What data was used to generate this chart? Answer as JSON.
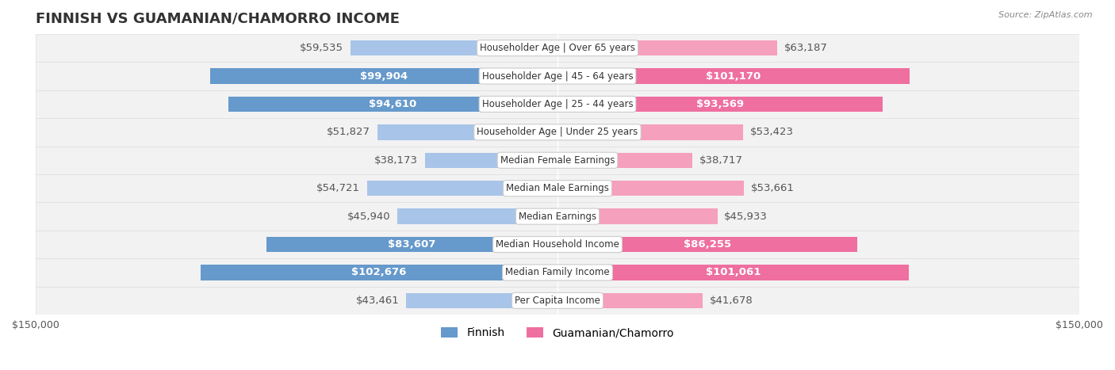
{
  "title": "FINNISH VS GUAMANIAN/CHAMORRO INCOME",
  "source": "Source: ZipAtlas.com",
  "categories": [
    "Per Capita Income",
    "Median Family Income",
    "Median Household Income",
    "Median Earnings",
    "Median Male Earnings",
    "Median Female Earnings",
    "Householder Age | Under 25 years",
    "Householder Age | 25 - 44 years",
    "Householder Age | 45 - 64 years",
    "Householder Age | Over 65 years"
  ],
  "finnish_values": [
    43461,
    102676,
    83607,
    45940,
    54721,
    38173,
    51827,
    94610,
    99904,
    59535
  ],
  "guamanian_values": [
    41678,
    101061,
    86255,
    45933,
    53661,
    38717,
    53423,
    93569,
    101170,
    63187
  ],
  "finnish_labels": [
    "$43,461",
    "$102,676",
    "$83,607",
    "$45,940",
    "$54,721",
    "$38,173",
    "$51,827",
    "$94,610",
    "$99,904",
    "$59,535"
  ],
  "guamanian_labels": [
    "$41,678",
    "$101,061",
    "$86,255",
    "$45,933",
    "$53,661",
    "$38,717",
    "$53,423",
    "$93,569",
    "$101,170",
    "$63,187"
  ],
  "finnish_color_light": "#a8c4e8",
  "finnish_color_dark": "#6699cc",
  "guamanian_color_light": "#f5a0bc",
  "guamanian_color_dark": "#ee6fa0",
  "max_value": 150000,
  "row_bg_color": "#f0f0f0",
  "bar_height": 0.55,
  "label_fontsize": 9.5,
  "title_fontsize": 13,
  "legend_fontsize": 10
}
